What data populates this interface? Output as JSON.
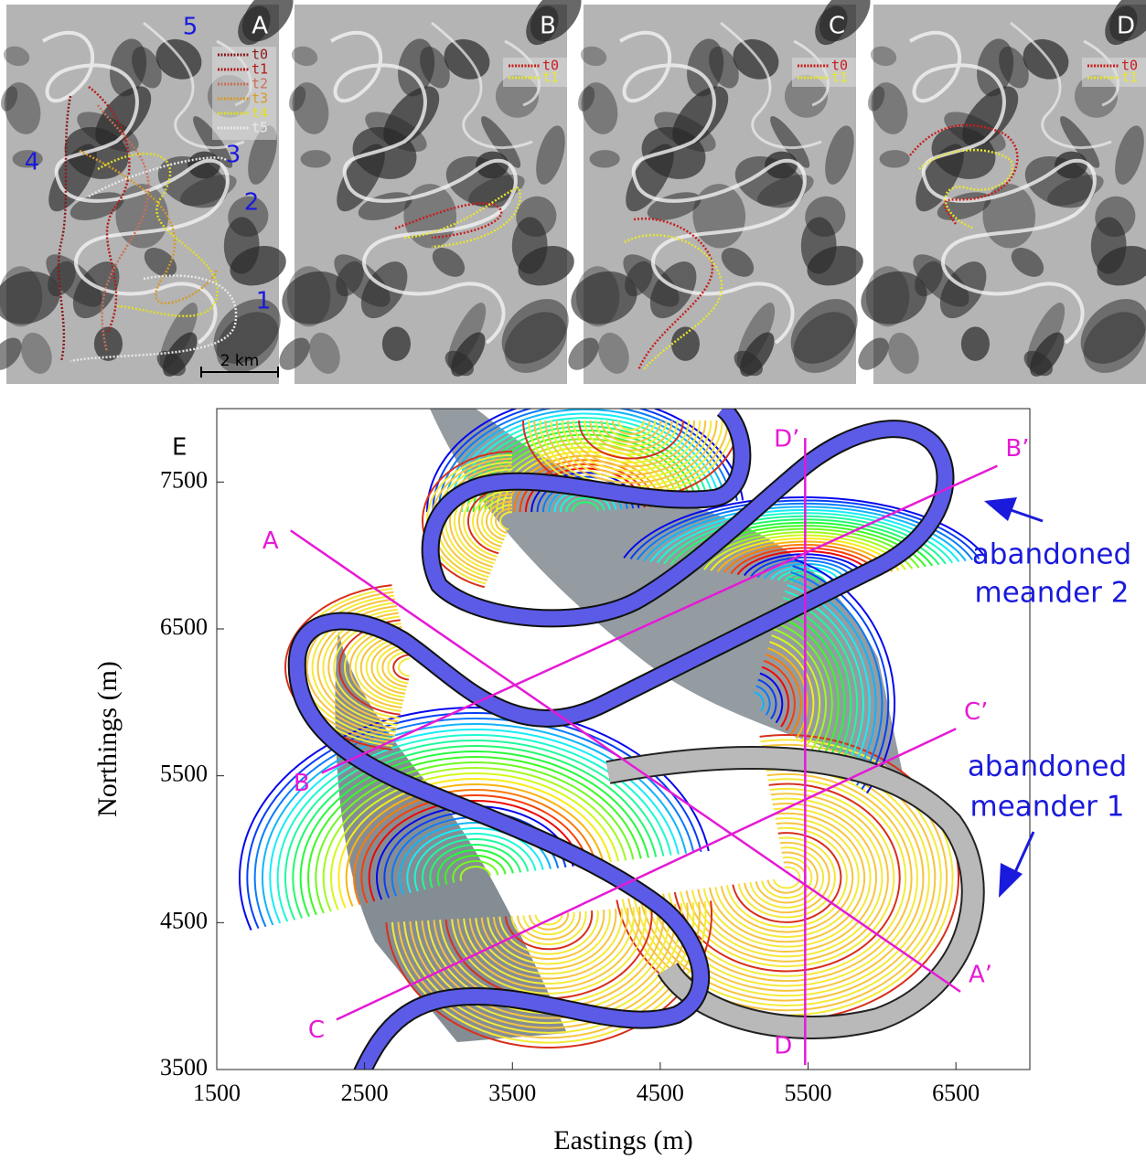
{
  "panels": [
    {
      "label": "A",
      "legend": [
        "t0",
        "t1",
        "t2",
        "t3",
        "t4",
        "t5"
      ],
      "legend_colors": [
        "#8b1a1a",
        "#b01c1c",
        "#c8705a",
        "#d49a2a",
        "#dede2a",
        "#e8e8e8"
      ],
      "numbers": [
        "5",
        "4",
        "3",
        "2",
        "1"
      ],
      "scale_bar": "2 km"
    },
    {
      "label": "B",
      "legend": [
        "t0",
        "t1"
      ],
      "legend_colors": [
        "#c81e1e",
        "#e6e632"
      ]
    },
    {
      "label": "C",
      "legend": [
        "t0",
        "t1"
      ],
      "legend_colors": [
        "#c81e1e",
        "#e6e632"
      ]
    },
    {
      "label": "D",
      "legend": [
        "t0",
        "t1"
      ],
      "legend_colors": [
        "#c81e1e",
        "#e6e632"
      ]
    }
  ],
  "chart_data": {
    "type": "line",
    "panel_label": "E",
    "x_label": "Eastings (m)",
    "y_label": "Northings (m)",
    "xlim": [
      1500,
      7000
    ],
    "ylim": [
      3500,
      8000
    ],
    "xticks": [
      1500,
      2500,
      3500,
      4500,
      5500,
      6500
    ],
    "yticks": [
      3500,
      4500,
      5500,
      6500,
      7500
    ],
    "color": "#e619d6",
    "series": [
      {
        "name": "A",
        "end_name": "A’",
        "x": [
          2000,
          6530
        ],
        "values": [
          7170,
          4030
        ]
      },
      {
        "name": "B",
        "end_name": "B’",
        "x": [
          2210,
          6780
        ],
        "values": [
          5520,
          7610
        ]
      },
      {
        "name": "C",
        "end_name": "C’",
        "x": [
          2310,
          6500
        ],
        "values": [
          3840,
          5820
        ]
      },
      {
        "name": "D",
        "end_name": "D’",
        "x": [
          5480,
          5480
        ],
        "values": [
          3530,
          7800
        ]
      }
    ],
    "annotations": [
      "abandoned",
      "meander 2",
      "abandoned",
      "meander 1"
    ]
  }
}
